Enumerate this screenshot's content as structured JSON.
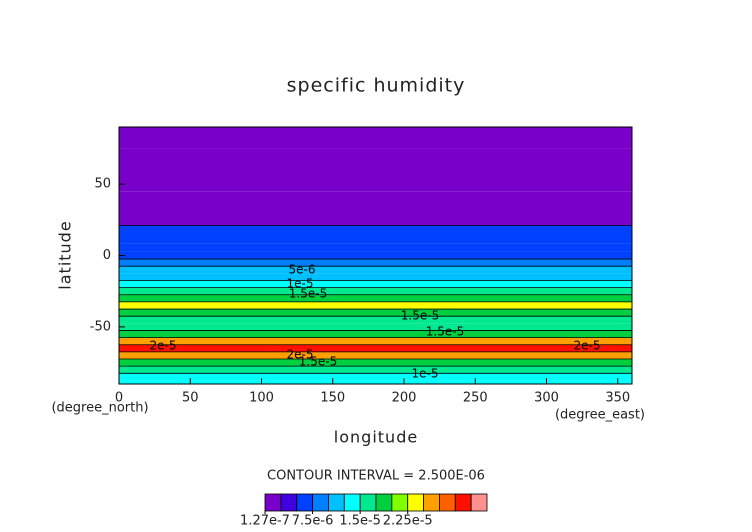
{
  "chart_data": {
    "type": "contour",
    "title": "specific humidity",
    "x_label": "longitude",
    "y_label": "latitude",
    "x_unit": "(degree_east)",
    "y_unit": "(degree_north)",
    "xlim": [
      0,
      360
    ],
    "ylim": [
      -90,
      90
    ],
    "xticks": [
      0,
      50,
      100,
      150,
      200,
      250,
      300,
      350
    ],
    "yticks": [
      -50,
      0,
      50
    ],
    "lat": [
      90,
      60,
      30,
      12,
      5,
      0,
      -5,
      -10,
      -15,
      -20,
      -25,
      -30,
      -35,
      -40,
      -45,
      -50,
      -55,
      -60,
      -65,
      -70,
      -75,
      -80,
      -85,
      -90
    ],
    "values": [
      1e-06,
      1e-06,
      1e-06,
      6e-06,
      6e-06,
      6e-06,
      8e-06,
      1.05e-05,
      1.2e-05,
      1.4e-05,
      1.6e-05,
      1.8e-05,
      2.3e-05,
      1.9e-05,
      1.7e-05,
      1.7e-05,
      1.9e-05,
      2.6e-05,
      3.1e-05,
      2.6e-05,
      1.8e-05,
      1.5e-05,
      1.4e-05,
      1.4e-05
    ],
    "levels": [
      1.27e-07,
      2.5e-06,
      5e-06,
      7.5e-06,
      1e-05,
      1.25e-05,
      1.5e-05,
      1.75e-05,
      2e-05,
      2.25e-05,
      2.5e-05,
      2.75e-05,
      3e-05,
      3.25e-05,
      3.5e-05
    ],
    "colors": [
      "#7800c8",
      "#4000e0",
      "#0040ff",
      "#0080ff",
      "#00c0ff",
      "#00ffff",
      "#00e890",
      "#00d040",
      "#80ff00",
      "#ffff00",
      "#ffa000",
      "#ff6000",
      "#ff1000",
      "#ff9090"
    ],
    "colorbar_ticks": [
      {
        "value": 1.27e-07,
        "label": "1.27e-7"
      },
      {
        "value": 7.5e-06,
        "label": "7.5e-6"
      },
      {
        "value": 1.5e-05,
        "label": "1.5e-5"
      },
      {
        "value": 2.25e-05,
        "label": "2.25e-5"
      }
    ],
    "contour_interval": "CONTOUR INTERVAL = 2.500E-06",
    "contour_labels": [
      "5e-6",
      "1e-5",
      "1.5e-5",
      "1.5e-5",
      "1.5e-5",
      "2e-5",
      "2e-5",
      "1.5e-5",
      "2e-5",
      "1e-5"
    ]
  }
}
